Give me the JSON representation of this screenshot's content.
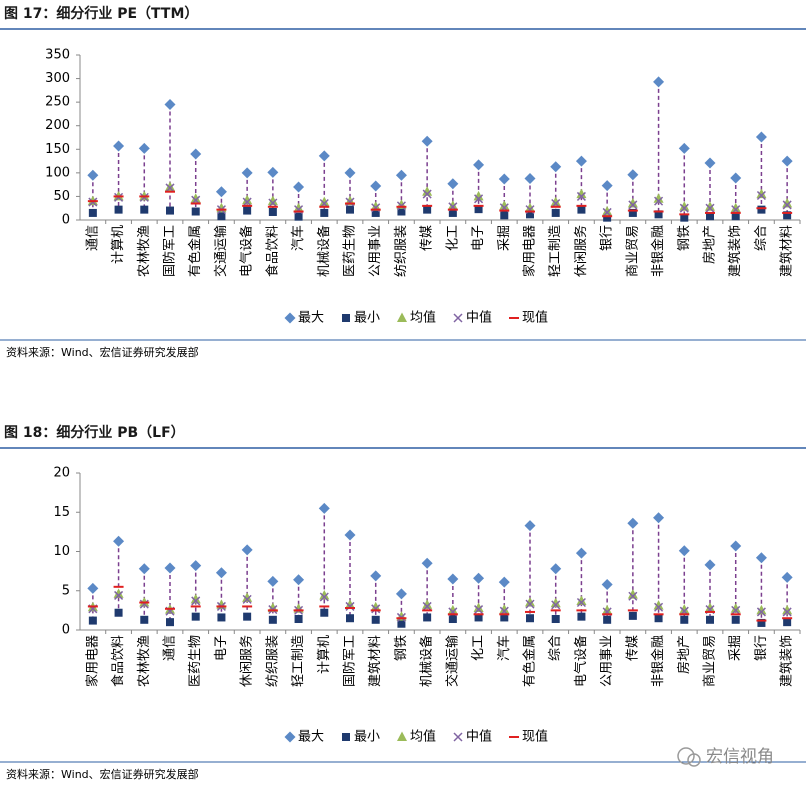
{
  "chart_data": [
    {
      "type": "dot",
      "title": "图 17：细分行业 PE（TTM）",
      "source": "资料来源：Wind、宏信证券研究发展部",
      "categories": [
        "通信",
        "计算机",
        "农林牧渔",
        "国防军工",
        "有色金属",
        "交通运输",
        "电气设备",
        "食品饮料",
        "汽车",
        "机械设备",
        "医药生物",
        "公用事业",
        "纺织服装",
        "传媒",
        "化工",
        "电子",
        "采掘",
        "家用电器",
        "轻工制造",
        "休闲服务",
        "银行",
        "商业贸易",
        "非银金融",
        "钢铁",
        "房地产",
        "建筑装饰",
        "综合",
        "建筑材料"
      ],
      "series": [
        {
          "name": "最大",
          "color": "#5b89c6",
          "marker": "diamond",
          "values": [
            95,
            157,
            152,
            245,
            140,
            60,
            100,
            101,
            70,
            136,
            100,
            72,
            95,
            167,
            77,
            117,
            87,
            88,
            113,
            125,
            73,
            96,
            293,
            152,
            121,
            89,
            176,
            125
          ]
        },
        {
          "name": "最小",
          "color": "#1f3a6e",
          "marker": "square",
          "values": [
            15,
            22,
            22,
            20,
            18,
            8,
            20,
            17,
            7,
            15,
            22,
            15,
            18,
            22,
            15,
            23,
            10,
            12,
            15,
            22,
            5,
            15,
            12,
            5,
            8,
            8,
            22,
            10
          ]
        },
        {
          "name": "均值",
          "color": "#9bbb59",
          "marker": "triangle",
          "values": [
            40,
            50,
            50,
            70,
            45,
            25,
            42,
            40,
            25,
            38,
            40,
            28,
            32,
            60,
            30,
            50,
            30,
            25,
            38,
            55,
            18,
            35,
            45,
            28,
            28,
            25,
            55,
            35
          ]
        },
        {
          "name": "中值",
          "color": "#8064a2",
          "marker": "x",
          "values": [
            38,
            48,
            48,
            68,
            42,
            22,
            38,
            36,
            22,
            35,
            38,
            26,
            30,
            55,
            28,
            45,
            26,
            22,
            35,
            50,
            16,
            32,
            40,
            25,
            25,
            22,
            52,
            32
          ]
        },
        {
          "name": "现值",
          "color": "#e02020",
          "marker": "dash",
          "values": [
            40,
            50,
            50,
            60,
            35,
            22,
            30,
            28,
            18,
            28,
            35,
            22,
            28,
            30,
            22,
            30,
            20,
            18,
            28,
            30,
            8,
            20,
            18,
            12,
            15,
            15,
            25,
            15
          ]
        }
      ],
      "range_color": "#7b3f8f",
      "ylim": [
        0,
        350
      ],
      "yticks": [
        0,
        50,
        100,
        150,
        200,
        250,
        300,
        350
      ]
    },
    {
      "type": "dot",
      "title": "图 18：细分行业 PB（LF）",
      "source": "资料来源：Wind、宏信证券研究发展部",
      "categories": [
        "家用电器",
        "食品饮料",
        "农林牧渔",
        "通信",
        "医药生物",
        "电子",
        "休闲服务",
        "纺织服装",
        "轻工制造",
        "计算机",
        "国防军工",
        "建筑材料",
        "钢铁",
        "机械设备",
        "交通运输",
        "化工",
        "汽车",
        "有色金属",
        "综合",
        "电气设备",
        "公用事业",
        "传媒",
        "非银金融",
        "房地产",
        "商业贸易",
        "采掘",
        "银行",
        "建筑装饰"
      ],
      "series": [
        {
          "name": "最大",
          "color": "#5b89c6",
          "marker": "diamond",
          "values": [
            5.3,
            11.3,
            7.8,
            7.9,
            8.2,
            7.3,
            10.2,
            6.2,
            6.4,
            15.5,
            12.1,
            6.9,
            4.6,
            8.5,
            6.5,
            6.6,
            6.1,
            13.3,
            7.8,
            9.8,
            5.8,
            13.6,
            14.3,
            10.1,
            8.3,
            10.7,
            9.2,
            6.7
          ]
        },
        {
          "name": "最小",
          "color": "#1f3a6e",
          "marker": "square",
          "values": [
            1.2,
            2.2,
            1.3,
            1.0,
            1.7,
            1.6,
            1.7,
            1.3,
            1.4,
            2.2,
            1.5,
            1.3,
            0.8,
            1.6,
            1.4,
            1.6,
            1.6,
            1.5,
            1.4,
            1.7,
            1.3,
            1.8,
            1.5,
            1.3,
            1.3,
            1.3,
            0.9,
            1.0
          ]
        },
        {
          "name": "均值",
          "color": "#9bbb59",
          "marker": "triangle",
          "values": [
            2.9,
            4.6,
            3.5,
            2.6,
            3.9,
            3.2,
            4.1,
            2.8,
            2.7,
            4.4,
            3.2,
            2.9,
            1.7,
            3.2,
            2.5,
            2.8,
            2.6,
            3.5,
            3.4,
            3.7,
            2.5,
            4.5,
            3.1,
            2.6,
            2.8,
            2.7,
            2.5,
            2.5
          ]
        },
        {
          "name": "中值",
          "color": "#8064a2",
          "marker": "x",
          "values": [
            2.7,
            4.4,
            3.3,
            2.4,
            3.7,
            3.0,
            3.9,
            2.6,
            2.5,
            4.2,
            3.0,
            2.7,
            1.6,
            3.0,
            2.3,
            2.6,
            2.4,
            3.3,
            3.2,
            3.5,
            2.3,
            4.3,
            2.9,
            2.4,
            2.6,
            2.5,
            2.3,
            2.3
          ]
        },
        {
          "name": "现值",
          "color": "#e02020",
          "marker": "dash",
          "values": [
            3.0,
            5.5,
            3.5,
            2.7,
            3.0,
            3.0,
            3.0,
            2.5,
            2.5,
            3.0,
            2.8,
            2.5,
            1.5,
            2.5,
            2.0,
            2.0,
            2.0,
            2.3,
            2.5,
            2.5,
            2.0,
            2.5,
            2.0,
            2.0,
            2.3,
            2.0,
            1.2,
            1.5
          ]
        }
      ],
      "range_color": "#7b3f8f",
      "ylim": [
        0,
        20
      ],
      "yticks": [
        0,
        5,
        10,
        15,
        20
      ]
    }
  ],
  "watermark": "宏信视角"
}
